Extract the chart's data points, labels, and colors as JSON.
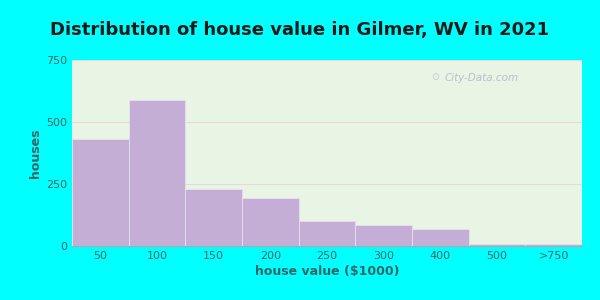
{
  "title": "Distribution of house value in Gilmer, WV in 2021",
  "xlabel": "house value ($1000)",
  "ylabel": "houses",
  "bar_labels": [
    "50",
    "100",
    "150",
    "200",
    "250",
    "300",
    "400",
    "500",
    ">750"
  ],
  "bar_values": [
    430,
    590,
    230,
    195,
    100,
    85,
    70,
    8,
    8
  ],
  "bar_color": "#c4aed6",
  "bar_edge_color": "#e8e0f0",
  "ylim": [
    0,
    750
  ],
  "yticks": [
    0,
    250,
    500,
    750
  ],
  "bg_outer": "#00ffff",
  "bg_inner": "#e8f5e5",
  "title_fontsize": 13,
  "axis_label_fontsize": 9,
  "tick_fontsize": 8,
  "watermark": "City-Data.com",
  "grid_color": "#e8d0d8",
  "title_color": "#1a1a1a"
}
